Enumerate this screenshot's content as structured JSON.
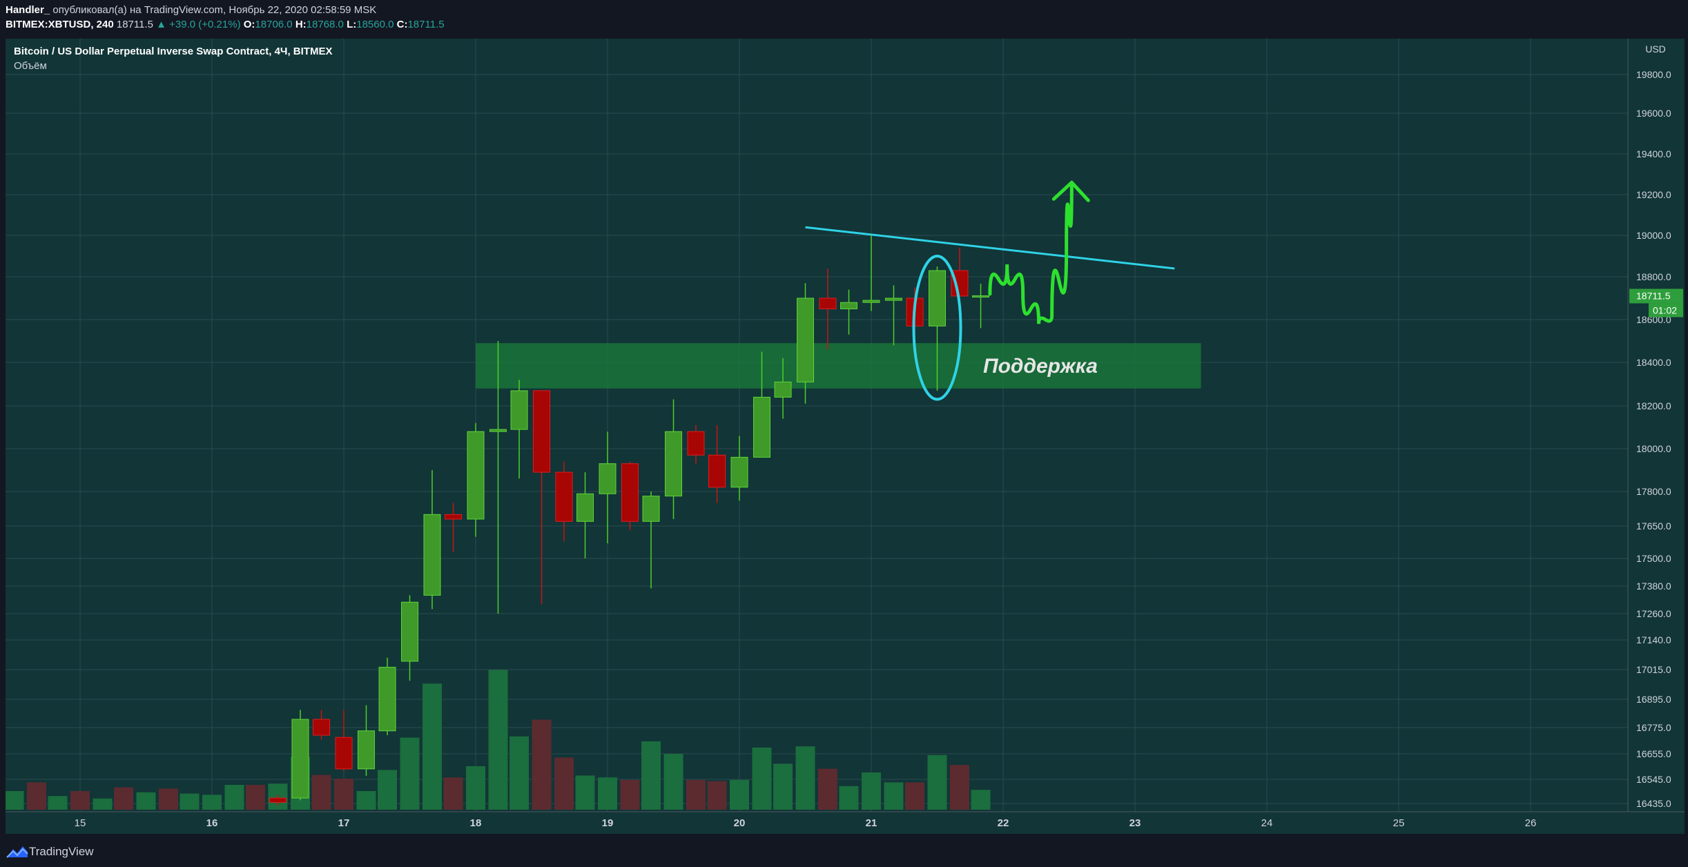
{
  "header": {
    "author": "Handler_",
    "published_text": " опубликовал(а) на TradingView.com, Ноябрь 22, 2020 02:58:59 MSK",
    "symbol": "BITMEX:XBTUSD, 240",
    "last": "18711.5",
    "change": "▲ +39.0 (+0.21%)",
    "o_label": "O:",
    "o_value": "18706.0",
    "h_label": "H:",
    "h_value": "18768.0",
    "l_label": "L:",
    "l_value": "18560.0",
    "c_label": "C:",
    "c_value": "18711.5"
  },
  "chart_title": "Bitcoin / US Dollar Perpetual Inverse Swap Contract, 4Ч, BITMEX",
  "volume_label": "Объём",
  "footer": {
    "brand": "TradingView"
  },
  "colors": {
    "background": "#123537",
    "bull": "#3f9a2a",
    "bear": "#a80505",
    "vol_bull": "#1b6e3e",
    "vol_bear": "#5b2b30",
    "support_zone": "#1a7a3a",
    "trendline": "#2fd3e6",
    "projection": "#2ee02e",
    "price_tag": "#2e9e3c"
  },
  "chart_data": {
    "type": "candlestick",
    "currency": "USD",
    "price_axis_ticks": [
      19800.0,
      19600.0,
      19400.0,
      19200.0,
      19000.0,
      18800.0,
      18600.0,
      18400.0,
      18200.0,
      18000.0,
      17800.0,
      17650.0,
      17500.0,
      17380.0,
      17260.0,
      17140.0,
      17015.0,
      16895.0,
      16775.0,
      16655.0,
      16545.0,
      16435.0
    ],
    "x_ticks": [
      {
        "label": "15",
        "day": 15
      },
      {
        "label": "16",
        "day": 16
      },
      {
        "label": "17",
        "day": 17
      },
      {
        "label": "18",
        "day": 18
      },
      {
        "label": "19",
        "day": 19
      },
      {
        "label": "20",
        "day": 20
      },
      {
        "label": "21",
        "day": 21
      },
      {
        "label": "22",
        "day": 22
      },
      {
        "label": "23",
        "day": 23
      },
      {
        "label": "24",
        "day": 24
      },
      {
        "label": "25",
        "day": 25
      },
      {
        "label": "26",
        "day": 26
      }
    ],
    "bold_x_ticks": [
      "16",
      "17",
      "18",
      "19",
      "20",
      "21",
      "22",
      "23"
    ],
    "candles": [
      {
        "day": 16.5,
        "o": 16460,
        "h": 16475,
        "l": 16425,
        "c": 16440
      },
      {
        "day": 16.67,
        "o": 16460,
        "h": 16850,
        "l": 16450,
        "c": 16810
      },
      {
        "day": 16.83,
        "o": 16810,
        "h": 16850,
        "l": 16720,
        "c": 16740
      },
      {
        "day": 17.0,
        "o": 16730,
        "h": 16850,
        "l": 16580,
        "c": 16590
      },
      {
        "day": 17.17,
        "o": 16590,
        "h": 16870,
        "l": 16560,
        "c": 16760
      },
      {
        "day": 17.33,
        "o": 16760,
        "h": 17065,
        "l": 16740,
        "c": 17025
      },
      {
        "day": 17.5,
        "o": 17050,
        "h": 17340,
        "l": 16970,
        "c": 17310
      },
      {
        "day": 17.67,
        "o": 17340,
        "h": 17900,
        "l": 17280,
        "c": 17700
      },
      {
        "day": 17.83,
        "o": 17700,
        "h": 17750,
        "l": 17530,
        "c": 17680
      },
      {
        "day": 18.0,
        "o": 17680,
        "h": 18120,
        "l": 17600,
        "c": 18080
      },
      {
        "day": 18.17,
        "o": 18080,
        "h": 18500,
        "l": 17260,
        "c": 18090
      },
      {
        "day": 18.33,
        "o": 18090,
        "h": 18320,
        "l": 17860,
        "c": 18270
      },
      {
        "day": 18.5,
        "o": 18270,
        "h": 18270,
        "l": 17300,
        "c": 17890
      },
      {
        "day": 18.67,
        "o": 17890,
        "h": 17940,
        "l": 17580,
        "c": 17670
      },
      {
        "day": 18.83,
        "o": 17670,
        "h": 17890,
        "l": 17500,
        "c": 17790
      },
      {
        "day": 19.0,
        "o": 17790,
        "h": 18080,
        "l": 17570,
        "c": 17930
      },
      {
        "day": 19.17,
        "o": 17930,
        "h": 17940,
        "l": 17630,
        "c": 17670
      },
      {
        "day": 19.33,
        "o": 17670,
        "h": 17800,
        "l": 17370,
        "c": 17780
      },
      {
        "day": 19.5,
        "o": 17780,
        "h": 18230,
        "l": 17680,
        "c": 18080
      },
      {
        "day": 19.67,
        "o": 18080,
        "h": 18110,
        "l": 17930,
        "c": 17970
      },
      {
        "day": 19.83,
        "o": 17970,
        "h": 18110,
        "l": 17750,
        "c": 17820
      },
      {
        "day": 20.0,
        "o": 17820,
        "h": 18060,
        "l": 17760,
        "c": 17960
      },
      {
        "day": 20.17,
        "o": 17960,
        "h": 18450,
        "l": 17960,
        "c": 18240
      },
      {
        "day": 20.33,
        "o": 18240,
        "h": 18420,
        "l": 18140,
        "c": 18310
      },
      {
        "day": 20.5,
        "o": 18310,
        "h": 18770,
        "l": 18210,
        "c": 18700
      },
      {
        "day": 20.67,
        "o": 18700,
        "h": 18840,
        "l": 18460,
        "c": 18650
      },
      {
        "day": 20.83,
        "o": 18650,
        "h": 18740,
        "l": 18530,
        "c": 18680
      },
      {
        "day": 21.0,
        "o": 18680,
        "h": 19000,
        "l": 18640,
        "c": 18690
      },
      {
        "day": 21.17,
        "o": 18690,
        "h": 18760,
        "l": 18480,
        "c": 18700
      },
      {
        "day": 21.33,
        "o": 18700,
        "h": 18750,
        "l": 18540,
        "c": 18570
      },
      {
        "day": 21.5,
        "o": 18570,
        "h": 18850,
        "l": 18270,
        "c": 18830
      },
      {
        "day": 21.67,
        "o": 18830,
        "h": 18940,
        "l": 18600,
        "c": 18710
      },
      {
        "day": 21.83,
        "o": 18706,
        "h": 18768,
        "l": 18560,
        "c": 18711.5
      }
    ],
    "volume_bars": [
      {
        "day": 14.5,
        "v": 0.3,
        "up": true
      },
      {
        "day": 14.67,
        "v": 0.44,
        "up": false
      },
      {
        "day": 14.83,
        "v": 0.22,
        "up": true
      },
      {
        "day": 15.0,
        "v": 0.3,
        "up": false
      },
      {
        "day": 15.17,
        "v": 0.18,
        "up": true
      },
      {
        "day": 15.33,
        "v": 0.36,
        "up": false
      },
      {
        "day": 15.5,
        "v": 0.28,
        "up": true
      },
      {
        "day": 15.67,
        "v": 0.34,
        "up": false
      },
      {
        "day": 15.83,
        "v": 0.26,
        "up": true
      },
      {
        "day": 16.0,
        "v": 0.24,
        "up": true
      },
      {
        "day": 16.17,
        "v": 0.4,
        "up": true
      },
      {
        "day": 16.33,
        "v": 0.4,
        "up": false
      },
      {
        "day": 16.5,
        "v": 0.42,
        "up": true
      },
      {
        "day": 16.67,
        "v": 0.85,
        "up": true
      },
      {
        "day": 16.83,
        "v": 0.56,
        "up": false
      },
      {
        "day": 17.0,
        "v": 0.5,
        "up": false
      },
      {
        "day": 17.17,
        "v": 0.3,
        "up": true
      },
      {
        "day": 17.33,
        "v": 0.64,
        "up": true
      },
      {
        "day": 17.5,
        "v": 1.16,
        "up": true
      },
      {
        "day": 17.67,
        "v": 2.03,
        "up": true
      },
      {
        "day": 17.83,
        "v": 0.52,
        "up": false
      },
      {
        "day": 18.0,
        "v": 0.7,
        "up": true
      },
      {
        "day": 18.17,
        "v": 2.25,
        "up": true
      },
      {
        "day": 18.33,
        "v": 1.18,
        "up": true
      },
      {
        "day": 18.5,
        "v": 1.45,
        "up": false
      },
      {
        "day": 18.67,
        "v": 0.84,
        "up": false
      },
      {
        "day": 18.83,
        "v": 0.55,
        "up": true
      },
      {
        "day": 19.0,
        "v": 0.52,
        "up": true
      },
      {
        "day": 19.17,
        "v": 0.48,
        "up": false
      },
      {
        "day": 19.33,
        "v": 1.1,
        "up": true
      },
      {
        "day": 19.5,
        "v": 0.9,
        "up": true
      },
      {
        "day": 19.67,
        "v": 0.48,
        "up": false
      },
      {
        "day": 19.83,
        "v": 0.46,
        "up": false
      },
      {
        "day": 20.0,
        "v": 0.48,
        "up": true
      },
      {
        "day": 20.17,
        "v": 1.0,
        "up": true
      },
      {
        "day": 20.33,
        "v": 0.74,
        "up": true
      },
      {
        "day": 20.5,
        "v": 1.02,
        "up": true
      },
      {
        "day": 20.67,
        "v": 0.66,
        "up": false
      },
      {
        "day": 20.83,
        "v": 0.38,
        "up": true
      },
      {
        "day": 21.0,
        "v": 0.6,
        "up": true
      },
      {
        "day": 21.17,
        "v": 0.44,
        "up": true
      },
      {
        "day": 21.33,
        "v": 0.44,
        "up": false
      },
      {
        "day": 21.5,
        "v": 0.88,
        "up": true
      },
      {
        "day": 21.67,
        "v": 0.72,
        "up": false
      },
      {
        "day": 21.83,
        "v": 0.32,
        "up": true
      }
    ],
    "annotations": {
      "support_zone": {
        "label": "Поддержка",
        "day_start": 18.0,
        "day_end": 23.5,
        "price_low": 18280,
        "price_high": 18490
      },
      "trendline": {
        "day_start": 20.5,
        "price_start": 19040,
        "day_end": 23.3,
        "price_end": 18840
      },
      "ellipse": {
        "day": 21.5,
        "price_low": 18230,
        "price_high": 18900
      },
      "projection": [
        {
          "day": 21.9,
          "price": 18720
        },
        {
          "day": 22.03,
          "price": 18860
        },
        {
          "day": 22.15,
          "price": 18720
        },
        {
          "day": 22.27,
          "price": 18580
        },
        {
          "day": 22.37,
          "price": 18620
        },
        {
          "day": 22.48,
          "price": 18940
        },
        {
          "day": 22.52,
          "price": 19260
        }
      ]
    },
    "last_price_tag": "18711.5",
    "countdown_tag": "01:02"
  }
}
